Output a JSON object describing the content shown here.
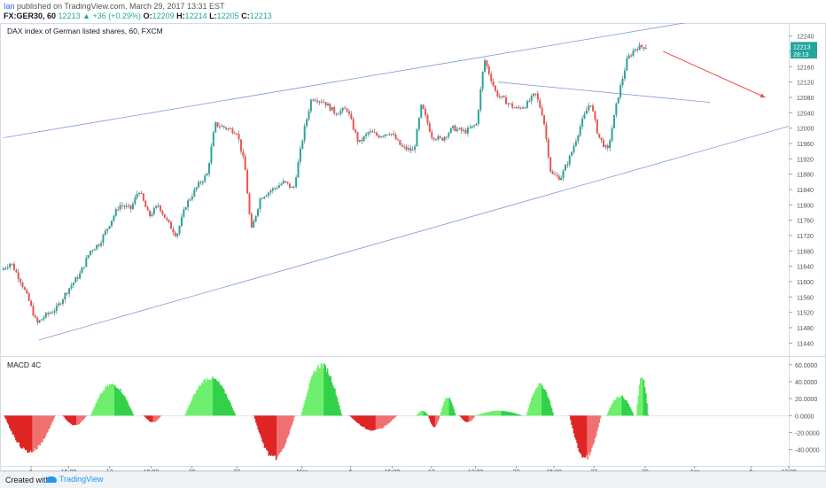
{
  "header": {
    "author": "Ian",
    "published": "published on TradingView.com, March 29, 2017 13:31 EST",
    "symbol": "FX:GER30, 60",
    "last": "12213",
    "change": "▲ +36 (+0.29%)",
    "o_label": "O:",
    "o": "12209",
    "h_label": "H:",
    "h": "12214",
    "l_label": "L:",
    "l": "12205",
    "c_label": "C:",
    "c": "12213"
  },
  "footer": {
    "created_with": "Created with",
    "brand": "TradingView"
  },
  "colors": {
    "up": "#26a69a",
    "down": "#ef5350",
    "trendline": "#7e9ad6",
    "arrow": "#ef5350",
    "macd_up_strong": "#33d14a",
    "macd_up_weak": "#6ef06e",
    "macd_dn_strong": "#e02525",
    "macd_dn_weak": "#f07070"
  },
  "chart_data": [
    {
      "type": "candlestick",
      "title": "DAX index of German listed shares, 60, FXCM",
      "y_ticks": [
        12240,
        12200,
        12160,
        12120,
        12080,
        12040,
        12000,
        11960,
        11920,
        11880,
        11840,
        11800,
        11760,
        11720,
        11680,
        11640,
        11600,
        11560,
        11520,
        11480,
        11440
      ],
      "ylim": [
        11420,
        12260
      ],
      "price_labels": [
        {
          "value": 12213,
          "text": "12213",
          "color": "#26a69a"
        },
        {
          "value": 12193,
          "text": "28:13",
          "color": "#26a69a"
        }
      ],
      "x_ticks": [
        {
          "label": "6",
          "x": 0.035
        },
        {
          "label": "15:00",
          "x": 0.083
        },
        {
          "label": "13",
          "x": 0.135
        },
        {
          "label": "15:00",
          "x": 0.188
        },
        {
          "label": "20",
          "x": 0.24
        },
        {
          "label": "23",
          "x": 0.297
        },
        {
          "label": "Mar",
          "x": 0.38
        },
        {
          "label": "6",
          "x": 0.442
        },
        {
          "label": "15:00",
          "x": 0.495
        },
        {
          "label": "13",
          "x": 0.545
        },
        {
          "label": "13:00",
          "x": 0.601
        },
        {
          "label": "20",
          "x": 0.653
        },
        {
          "label": "15:00",
          "x": 0.701
        },
        {
          "label": "27",
          "x": 0.752
        },
        {
          "label": "30",
          "x": 0.817
        },
        {
          "label": "Apr",
          "x": 0.88
        },
        {
          "label": "5",
          "x": 0.952
        },
        {
          "label": "12:00",
          "x": 1.0
        }
      ],
      "path_points": [
        [
          0.0,
          11630
        ],
        [
          0.012,
          11650
        ],
        [
          0.025,
          11600
        ],
        [
          0.035,
          11550
        ],
        [
          0.045,
          11490
        ],
        [
          0.055,
          11510
        ],
        [
          0.07,
          11530
        ],
        [
          0.085,
          11580
        ],
        [
          0.1,
          11620
        ],
        [
          0.113,
          11680
        ],
        [
          0.125,
          11700
        ],
        [
          0.14,
          11760
        ],
        [
          0.15,
          11800
        ],
        [
          0.165,
          11790
        ],
        [
          0.175,
          11840
        ],
        [
          0.188,
          11770
        ],
        [
          0.2,
          11800
        ],
        [
          0.21,
          11760
        ],
        [
          0.223,
          11720
        ],
        [
          0.235,
          11800
        ],
        [
          0.25,
          11850
        ],
        [
          0.262,
          11880
        ],
        [
          0.272,
          12010
        ],
        [
          0.287,
          12000
        ],
        [
          0.3,
          11990
        ],
        [
          0.31,
          11900
        ],
        [
          0.318,
          11730
        ],
        [
          0.33,
          11820
        ],
        [
          0.345,
          11840
        ],
        [
          0.36,
          11860
        ],
        [
          0.372,
          11840
        ],
        [
          0.385,
          11990
        ],
        [
          0.395,
          12080
        ],
        [
          0.41,
          12070
        ],
        [
          0.425,
          12040
        ],
        [
          0.44,
          12050
        ],
        [
          0.455,
          11960
        ],
        [
          0.468,
          11990
        ],
        [
          0.48,
          11980
        ],
        [
          0.495,
          11990
        ],
        [
          0.51,
          11950
        ],
        [
          0.525,
          11940
        ],
        [
          0.535,
          12060
        ],
        [
          0.548,
          11980
        ],
        [
          0.56,
          11970
        ],
        [
          0.575,
          12000
        ],
        [
          0.59,
          11990
        ],
        [
          0.605,
          12010
        ],
        [
          0.615,
          12180
        ],
        [
          0.63,
          12090
        ],
        [
          0.642,
          12070
        ],
        [
          0.655,
          12050
        ],
        [
          0.668,
          12060
        ],
        [
          0.68,
          12090
        ],
        [
          0.69,
          12030
        ],
        [
          0.7,
          11880
        ],
        [
          0.712,
          11870
        ],
        [
          0.725,
          11930
        ],
        [
          0.738,
          12010
        ],
        [
          0.75,
          12070
        ],
        [
          0.76,
          11980
        ],
        [
          0.772,
          11940
        ],
        [
          0.785,
          12080
        ],
        [
          0.797,
          12180
        ],
        [
          0.808,
          12210
        ],
        [
          0.82,
          12213
        ]
      ],
      "lines": [
        {
          "from": [
            0.0,
            11975
          ],
          "to": [
            1.0,
            12320
          ]
        },
        {
          "from": [
            0.045,
            11448
          ],
          "to": [
            1.0,
            12005
          ]
        },
        {
          "from": [
            0.63,
            12120
          ],
          "to": [
            0.9,
            12067
          ]
        }
      ],
      "arrow": {
        "from": [
          0.84,
          12200
        ],
        "to": [
          0.97,
          12080
        ]
      },
      "panel": {
        "x0": 4,
        "x1": 890,
        "y0": 0,
        "y1": 376
      }
    },
    {
      "type": "bar",
      "title": "MACD 4C",
      "y_ticks": [
        {
          "value": 60,
          "text": "60.0000"
        },
        {
          "value": 40,
          "text": "40.0000"
        },
        {
          "value": 20,
          "text": "20.0000"
        },
        {
          "value": 0,
          "text": "0.0000"
        },
        {
          "value": -20,
          "text": "-20.0000"
        },
        {
          "value": -40,
          "text": "-40.0000"
        }
      ],
      "ylim": [
        -55,
        65
      ],
      "waves": [
        [
          0.0,
          0.065,
          -44
        ],
        [
          0.075,
          0.105,
          -12
        ],
        [
          0.11,
          0.165,
          38
        ],
        [
          0.178,
          0.2,
          -8
        ],
        [
          0.23,
          0.295,
          46
        ],
        [
          0.318,
          0.37,
          -52
        ],
        [
          0.378,
          0.43,
          62
        ],
        [
          0.44,
          0.5,
          -18
        ],
        [
          0.525,
          0.54,
          6
        ],
        [
          0.54,
          0.555,
          -14
        ],
        [
          0.555,
          0.575,
          22
        ],
        [
          0.58,
          0.6,
          -8
        ],
        [
          0.6,
          0.66,
          6
        ],
        [
          0.665,
          0.7,
          38
        ],
        [
          0.72,
          0.76,
          -52
        ],
        [
          0.767,
          0.802,
          24
        ],
        [
          0.805,
          0.82,
          48
        ]
      ],
      "panel": {
        "x0": 4,
        "x1": 890,
        "y0": 377,
        "y1": 500
      }
    }
  ]
}
